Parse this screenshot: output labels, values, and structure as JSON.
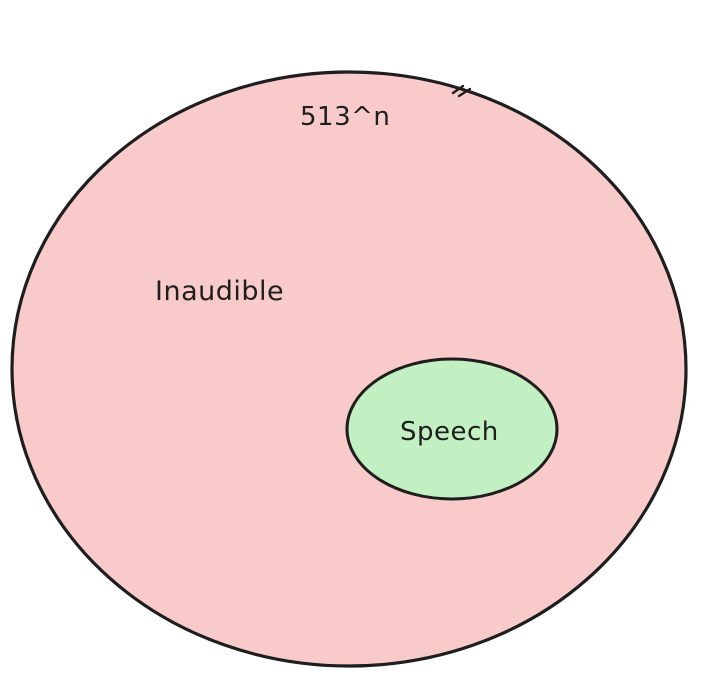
{
  "diagram": {
    "outer_set": {
      "count_label": "513^n",
      "label": "Inaudible",
      "fill": "#f8caca",
      "stroke": "#1e1e1e"
    },
    "inner_set": {
      "label": "Speech",
      "fill": "#c2f0c2",
      "stroke": "#1e1e1e"
    }
  }
}
